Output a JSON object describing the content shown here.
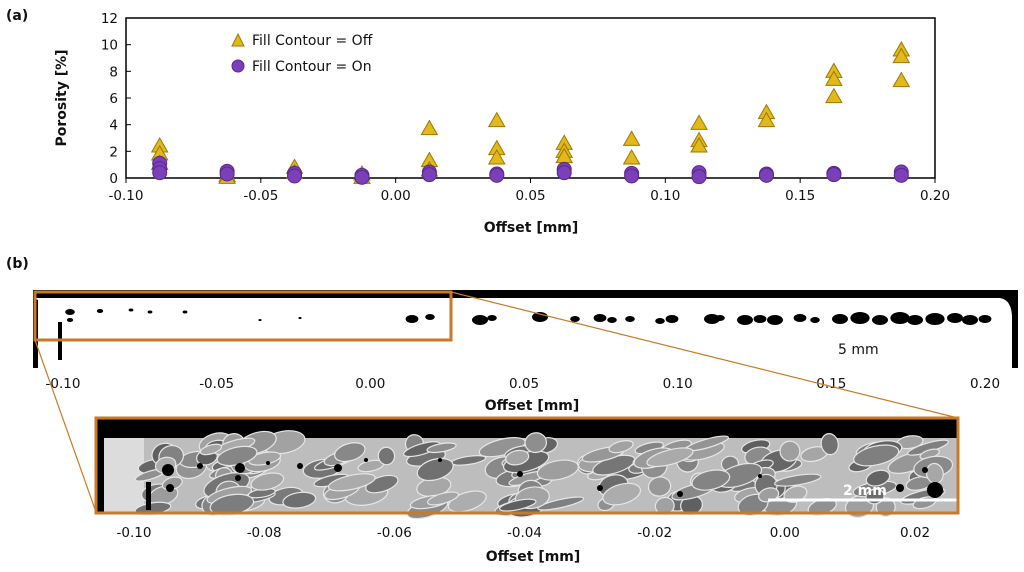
{
  "panels": {
    "a_label": "(a)",
    "b_label": "(b)"
  },
  "chart_data": {
    "type": "scatter",
    "xlabel": "Offset [mm]",
    "ylabel": "Porosity [%]",
    "xlim": [
      -0.1,
      0.2
    ],
    "ylim": [
      0,
      12
    ],
    "xticks": [
      -0.1,
      -0.05,
      0.0,
      0.05,
      0.1,
      0.15,
      0.2
    ],
    "xtick_labels": [
      "-0.10",
      "-0.05",
      "0.00",
      "0.05",
      "0.10",
      "0.15",
      "0.20"
    ],
    "yticks": [
      0,
      2,
      4,
      6,
      8,
      10,
      12
    ],
    "ytick_labels": [
      "0",
      "2",
      "4",
      "6",
      "8",
      "10",
      "12"
    ],
    "grid": false,
    "legend_position": "top-left",
    "series": [
      {
        "name": "Fill Contour = Off",
        "marker": "triangle",
        "color": "#E3B81A",
        "stroke": "#9A7A05",
        "points": [
          [
            -0.0875,
            2.4
          ],
          [
            -0.0875,
            1.8
          ],
          [
            -0.0875,
            1.1
          ],
          [
            -0.0625,
            0.2
          ],
          [
            -0.0625,
            0.05
          ],
          [
            -0.0375,
            0.8
          ],
          [
            -0.0375,
            0.4
          ],
          [
            -0.0125,
            0.3
          ],
          [
            -0.0125,
            0.05
          ],
          [
            0.0125,
            3.7
          ],
          [
            0.0125,
            1.3
          ],
          [
            0.0125,
            0.6
          ],
          [
            0.0375,
            4.3
          ],
          [
            0.0375,
            2.2
          ],
          [
            0.0375,
            1.5
          ],
          [
            0.0625,
            2.6
          ],
          [
            0.0625,
            2.0
          ],
          [
            0.0625,
            1.6
          ],
          [
            0.0875,
            2.9
          ],
          [
            0.0875,
            1.5
          ],
          [
            0.1125,
            4.1
          ],
          [
            0.1125,
            2.8
          ],
          [
            0.1125,
            2.4
          ],
          [
            0.1375,
            4.9
          ],
          [
            0.1375,
            4.3
          ],
          [
            0.1625,
            8.0
          ],
          [
            0.1625,
            7.4
          ],
          [
            0.1625,
            6.1
          ],
          [
            0.1875,
            9.6
          ],
          [
            0.1875,
            9.1
          ],
          [
            0.1875,
            7.3
          ]
        ]
      },
      {
        "name": "Fill Contour = On",
        "marker": "circle",
        "color": "#7B3FB8",
        "stroke": "#5A2890",
        "points": [
          [
            -0.0875,
            1.1
          ],
          [
            -0.0875,
            0.7
          ],
          [
            -0.0875,
            0.4
          ],
          [
            -0.0625,
            0.5
          ],
          [
            -0.0625,
            0.3
          ],
          [
            -0.0375,
            0.35
          ],
          [
            -0.0375,
            0.15
          ],
          [
            -0.0125,
            0.2
          ],
          [
            -0.0125,
            0.05
          ],
          [
            0.0125,
            0.45
          ],
          [
            0.0125,
            0.25
          ],
          [
            0.0375,
            0.3
          ],
          [
            0.0375,
            0.2
          ],
          [
            0.0625,
            0.65
          ],
          [
            0.0625,
            0.4
          ],
          [
            0.0875,
            0.35
          ],
          [
            0.0875,
            0.15
          ],
          [
            0.1125,
            0.4
          ],
          [
            0.1125,
            0.1
          ],
          [
            0.1375,
            0.3
          ],
          [
            0.1375,
            0.2
          ],
          [
            0.1625,
            0.35
          ],
          [
            0.1625,
            0.25
          ],
          [
            0.1875,
            0.45
          ],
          [
            0.1875,
            0.2
          ]
        ]
      }
    ]
  },
  "micrograph_top": {
    "scale_bar_label": "5 mm",
    "xlabel": "Offset [mm]",
    "xlim": [
      -0.1,
      0.2
    ],
    "xticks": [
      -0.1,
      -0.05,
      0.0,
      0.05,
      0.1,
      0.15,
      0.2
    ],
    "xtick_labels": [
      "-0.10",
      "-0.05",
      "0.00",
      "0.05",
      "0.10",
      "0.15",
      "0.20"
    ],
    "frame_color": "#C87A2A"
  },
  "micrograph_zoom": {
    "scale_bar_label": "2 mm",
    "xlabel": "Offset [mm]",
    "xticks": [
      -0.1,
      -0.08,
      -0.06,
      -0.04,
      -0.02,
      0.0,
      0.02
    ],
    "xtick_labels": [
      "-0.10",
      "-0.08",
      "-0.06",
      "-0.04",
      "-0.02",
      "0.00",
      "0.02"
    ],
    "frame_color": "#C87A2A"
  }
}
